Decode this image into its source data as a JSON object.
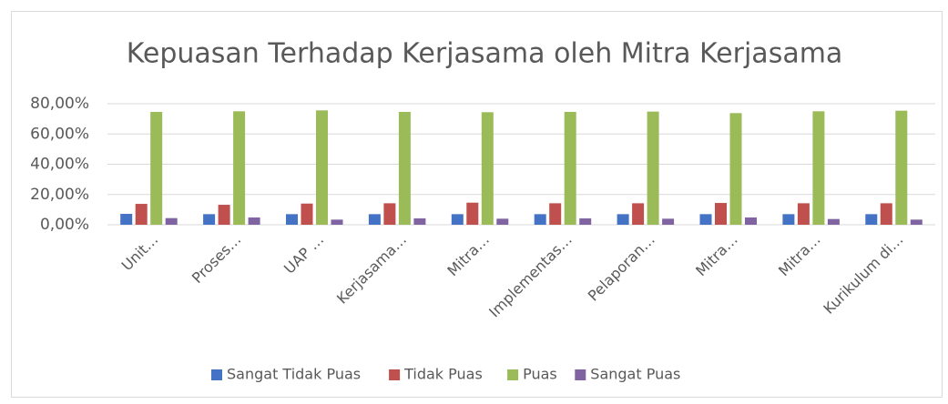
{
  "chart_data": {
    "type": "bar",
    "title": "Kepuasan Terhadap Kerjasama oleh Mitra Kerjasama",
    "categories": [
      "Unit…",
      "Proses…",
      "UAP …",
      "Kerjasama…",
      "Mitra…",
      "Implementas…",
      "Pelaporan…",
      "Mitra…",
      "Mitra…",
      "Kurikulum di…"
    ],
    "series": [
      {
        "name": "Sangat Tidak Puas",
        "color": "#4472c4",
        "values": [
          7.2,
          7.0,
          7.0,
          7.0,
          7.0,
          7.0,
          7.0,
          7.0,
          7.0,
          7.0
        ]
      },
      {
        "name": "Tidak Puas",
        "color": "#c0504d",
        "values": [
          13.8,
          13.2,
          14.0,
          14.2,
          14.6,
          14.2,
          14.2,
          14.4,
          14.2,
          14.2
        ]
      },
      {
        "name": "Puas",
        "color": "#9bbb59",
        "values": [
          74.6,
          75.0,
          75.6,
          74.6,
          74.4,
          74.6,
          74.8,
          73.8,
          75.0,
          75.4
        ]
      },
      {
        "name": "Sangat Puas",
        "color": "#8064a2",
        "values": [
          4.4,
          4.8,
          3.4,
          4.2,
          4.0,
          4.2,
          4.0,
          4.8,
          3.8,
          3.4
        ]
      }
    ],
    "ylim": [
      0,
      80
    ],
    "yticks": [
      {
        "value": 0,
        "label": "0,00%"
      },
      {
        "value": 20,
        "label": "20,00%"
      },
      {
        "value": 40,
        "label": "40,00%"
      },
      {
        "value": 60,
        "label": "60,00%"
      },
      {
        "value": 80,
        "label": "80,00%"
      }
    ],
    "grid": true,
    "legend": "bottom"
  }
}
